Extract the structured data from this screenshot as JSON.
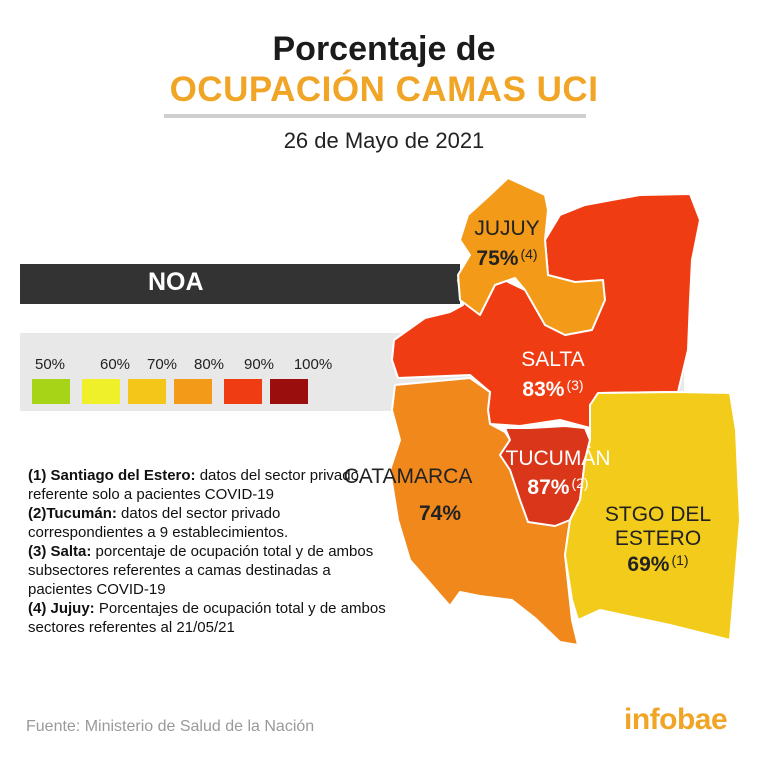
{
  "header": {
    "title_line1": "Porcentaje de",
    "title_line2": "OCUPACIÓN CAMAS UCI",
    "date": "26 de Mayo de 2021"
  },
  "region_bar": {
    "label": "NOA"
  },
  "legend": {
    "items": [
      {
        "label": "50%",
        "color": "#a8d417"
      },
      {
        "label": "60%",
        "color": "#f0f02a"
      },
      {
        "label": "70%",
        "color": "#f4c61a"
      },
      {
        "label": "80%",
        "color": "#f39a18"
      },
      {
        "label": "90%",
        "color": "#ef3c12"
      },
      {
        "label": "100%",
        "color": "#9a0e0e"
      }
    ]
  },
  "provinces": {
    "jujuy": {
      "name": "JUJUY",
      "value": "75%",
      "note_ref": "(4)",
      "percent": 75,
      "color": "#f39a18"
    },
    "salta": {
      "name": "SALTA",
      "value": "83%",
      "note_ref": "(3)",
      "percent": 83,
      "color": "#ef3c12"
    },
    "catamarca": {
      "name": "CATAMARCA",
      "value": "74%",
      "note_ref": "",
      "percent": 74,
      "color": "#f0881c"
    },
    "tucuman": {
      "name": "TUCUMÁN",
      "value": "87%",
      "note_ref": "(2)",
      "percent": 87,
      "color": "#d9361a"
    },
    "santiago": {
      "name_line1": "STGO DEL",
      "name_line2": "ESTERO",
      "value": "69%",
      "note_ref": "(1)",
      "percent": 69,
      "color": "#f3cc1b"
    }
  },
  "notes": [
    {
      "lead": "(1) Santiago del Estero:",
      "text": " datos del sector privado referente solo a pacientes COVID-19"
    },
    {
      "lead": "(2)Tucumán:",
      "text": " datos del sector privado correspondientes a 9 establecimientos."
    },
    {
      "lead": "(3) Salta:",
      "text": " porcentaje de ocupación total y de ambos subsectores referentes a camas destinadas a pacientes COVID-19"
    },
    {
      "lead": "(4) Jujuy:",
      "text": " Porcentajes de ocupación total y de ambos sectores referentes al 21/05/21"
    }
  ],
  "footer": {
    "source": "Fuente: Ministerio de Salud de la Nación",
    "brand": "infobae"
  }
}
